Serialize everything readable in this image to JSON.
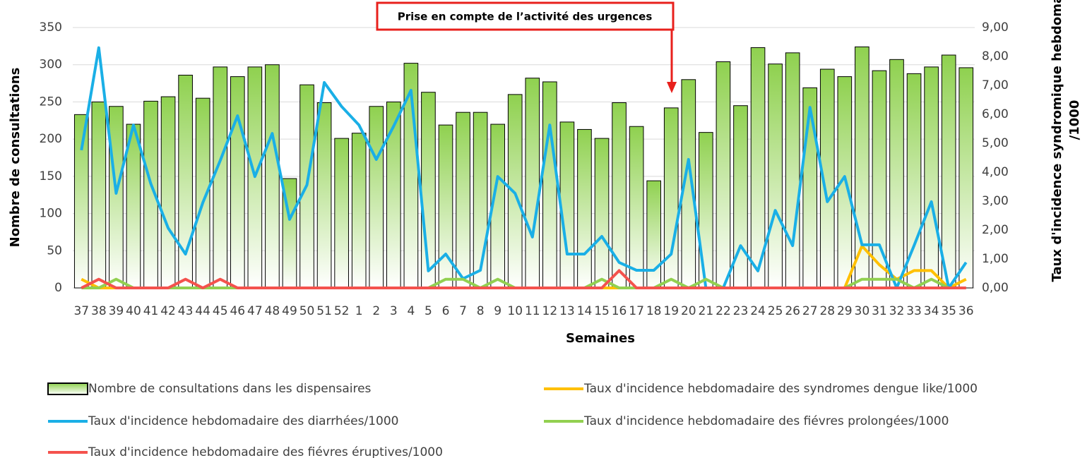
{
  "chart_data": {
    "type": "bar",
    "x_label": "Semaines",
    "y_label": "Nombre de consultations",
    "y2_label": [
      "Taux d'incidence syndromique hebdomadaire",
      "/1000"
    ],
    "annotation": "Prise en compte de l’activité des urgences",
    "categories": [
      "37",
      "38",
      "39",
      "40",
      "41",
      "42",
      "43",
      "44",
      "45",
      "46",
      "47",
      "48",
      "49",
      "50",
      "51",
      "52",
      "1",
      "2",
      "3",
      "4",
      "5",
      "6",
      "7",
      "8",
      "9",
      "10",
      "11",
      "12",
      "13",
      "14",
      "15",
      "16",
      "17",
      "18",
      "19",
      "20",
      "21",
      "22",
      "23",
      "24",
      "25",
      "26",
      "27",
      "28",
      "29",
      "30",
      "31",
      "32",
      "33",
      "34",
      "35",
      "36"
    ],
    "ylim": [
      0,
      350
    ],
    "yticks": [
      0,
      50,
      100,
      150,
      200,
      250,
      300,
      350
    ],
    "y2lim": [
      0,
      9
    ],
    "y2ticks": [
      {
        "value": 0,
        "label": "0,00"
      },
      {
        "value": 1,
        "label": "1,00"
      },
      {
        "value": 2,
        "label": "2,00"
      },
      {
        "value": 3,
        "label": "3,00"
      },
      {
        "value": 4,
        "label": "4,00"
      },
      {
        "value": 5,
        "label": "5,00"
      },
      {
        "value": 6,
        "label": "6,00"
      },
      {
        "value": 7,
        "label": "7,00"
      },
      {
        "value": 8,
        "label": "8,00"
      },
      {
        "value": 9,
        "label": "9,00"
      }
    ],
    "series": [
      {
        "name": "Nombre de consultations dans les dispensaires",
        "type": "bar",
        "color": "#8fd14f",
        "values": [
          233,
          250,
          244,
          220,
          251,
          257,
          286,
          255,
          297,
          284,
          297,
          300,
          147,
          273,
          249,
          201,
          208,
          244,
          250,
          302,
          263,
          219,
          236,
          236,
          220,
          260,
          282,
          277,
          223,
          213,
          201,
          249,
          217,
          144,
          242,
          280,
          209,
          304,
          245,
          323,
          301,
          316,
          269,
          294,
          284,
          324,
          292,
          307,
          288,
          297,
          313,
          296
        ]
      },
      {
        "name": "Taux d'incidence hebdomadaire des syndromes dengue like/1000",
        "type": "line",
        "axis": "y2",
        "color": "#ffc000",
        "values": [
          0.3,
          0,
          0,
          0,
          0,
          0,
          0,
          0,
          0,
          0,
          0,
          0,
          0,
          0,
          0,
          0,
          0,
          0,
          0,
          0,
          0,
          0,
          0,
          0,
          0,
          0,
          0,
          0,
          0,
          0,
          0,
          0,
          0,
          0,
          0,
          0,
          0,
          0,
          0,
          0,
          0,
          0,
          0,
          0,
          0,
          1.45,
          0.8,
          0.3,
          0.6,
          0.6,
          0,
          0.3
        ]
      },
      {
        "name": "Taux d'incidence hebdomadaire des diarrhées/1000",
        "type": "line",
        "axis": "y2",
        "color": "#1aafe6",
        "values": [
          4.76,
          8.3,
          3.27,
          5.63,
          3.6,
          2.07,
          1.17,
          2.95,
          4.4,
          5.95,
          3.85,
          5.34,
          2.37,
          3.56,
          7.1,
          6.27,
          5.63,
          4.44,
          5.59,
          6.83,
          0.59,
          1.17,
          0.32,
          0.61,
          3.85,
          3.27,
          1.76,
          5.63,
          1.17,
          1.17,
          1.78,
          0.88,
          0.61,
          0.61,
          1.17,
          4.44,
          0,
          0,
          1.46,
          0.59,
          2.68,
          1.46,
          6.24,
          2.98,
          3.85,
          1.49,
          1.49,
          0,
          1.46,
          2.98,
          0,
          0.88
        ]
      },
      {
        "name": "Taux d'incidence hebdomadaire des fiévres prolongées/1000",
        "type": "line",
        "axis": "y2",
        "color": "#92d050",
        "values": [
          0,
          0,
          0.3,
          0,
          0,
          0,
          0,
          0,
          0,
          0,
          0,
          0,
          0,
          0,
          0,
          0,
          0,
          0,
          0,
          0,
          0,
          0.3,
          0.3,
          0,
          0.3,
          0,
          0,
          0,
          0,
          0,
          0.3,
          0,
          0,
          0,
          0.3,
          0,
          0.3,
          0,
          0,
          0,
          0,
          0,
          0,
          0,
          0,
          0.3,
          0.3,
          0.3,
          0,
          0.3,
          0,
          0
        ]
      },
      {
        "name": "Taux d'incidence hebdomadaire des fiévres éruptives/1000",
        "type": "line",
        "axis": "y2",
        "color": "#f4524d",
        "values": [
          0,
          0.3,
          0,
          0,
          0,
          0,
          0.3,
          0,
          0.3,
          0,
          0,
          0,
          0,
          0,
          0,
          0,
          0,
          0,
          0,
          0,
          0,
          0,
          0,
          0,
          0,
          0,
          0,
          0,
          0,
          0,
          0,
          0.6,
          0,
          0,
          0,
          0,
          0,
          0,
          0,
          0,
          0,
          0,
          0,
          0,
          0,
          0,
          0,
          0,
          0,
          0,
          0,
          0
        ]
      }
    ]
  }
}
